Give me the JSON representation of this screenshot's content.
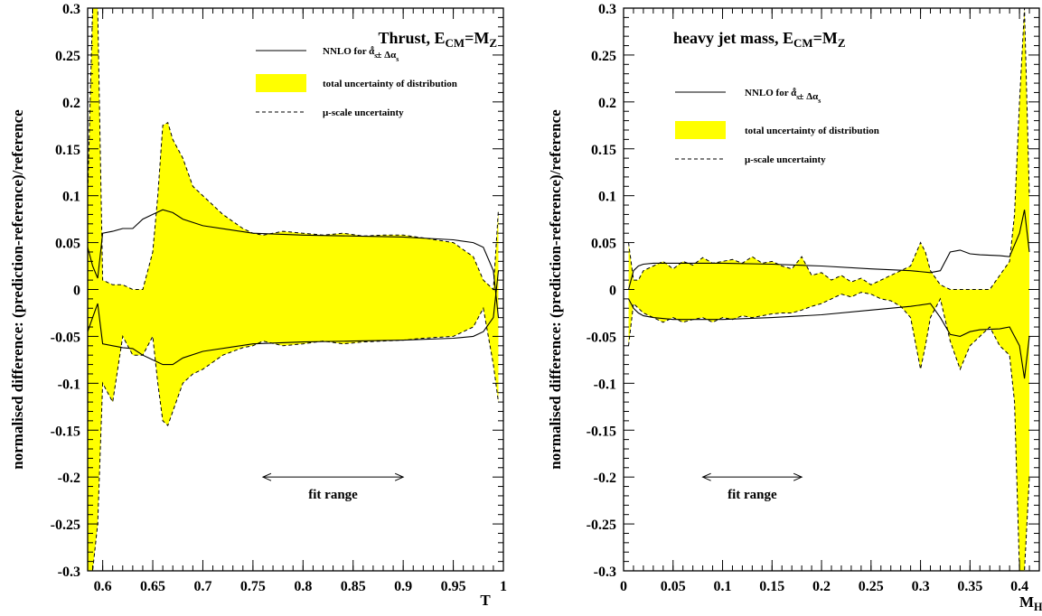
{
  "chart_data": [
    {
      "type": "area",
      "title": "Thrust, E_CM=M_Z",
      "title_parts": [
        "Thrust, E",
        "CM",
        "=M",
        "Z"
      ],
      "xlabel": "T",
      "ylabel": "normalised difference: (prediction-reference)/reference",
      "xlim": [
        0.585,
        1.0
      ],
      "ylim": [
        -0.3,
        0.3
      ],
      "xticks": [
        0.6,
        0.65,
        0.7,
        0.75,
        0.8,
        0.85,
        0.9,
        0.95,
        1
      ],
      "xtick_labels": [
        "0.6",
        "0.65",
        "0.7",
        "0.75",
        "0.8",
        "0.85",
        "0.9",
        "0.95",
        "1"
      ],
      "yticks": [
        0.3,
        0.25,
        0.2,
        0.15,
        0.1,
        0.05,
        0,
        -0.05,
        -0.1,
        -0.15,
        -0.2,
        -0.25,
        -0.3
      ],
      "ytick_labels": [
        "0.3",
        "0.25",
        "0.2",
        "0.15",
        "0.1",
        "0.05",
        "0",
        "-0.05",
        "-0.1",
        "-0.15",
        "-0.2",
        "-0.25",
        "-0.3"
      ],
      "legend": {
        "position": "top-right",
        "entries": [
          {
            "style": "solid",
            "label_parts": [
              "NNLO for α",
              "s",
              "0",
              " ± Δα",
              "s"
            ]
          },
          {
            "style": "fill",
            "label_parts": [
              "total uncertainty of distribution"
            ]
          },
          {
            "style": "dashed",
            "label_parts": [
              "μ-scale uncertainty"
            ]
          }
        ]
      },
      "fit_range": {
        "label": "fit range",
        "x": [
          0.76,
          0.9
        ],
        "y": -0.2
      },
      "band": {
        "color": "#ffff00",
        "x": [
          0.585,
          0.59,
          0.595,
          0.6,
          0.61,
          0.62,
          0.63,
          0.64,
          0.65,
          0.655,
          0.66,
          0.665,
          0.67,
          0.68,
          0.69,
          0.7,
          0.72,
          0.74,
          0.75,
          0.76,
          0.78,
          0.8,
          0.82,
          0.84,
          0.86,
          0.88,
          0.9,
          0.92,
          0.95,
          0.97,
          0.98,
          0.99,
          0.995
        ],
        "upper": [
          0.1,
          0.3,
          0.3,
          0.01,
          0.005,
          0.005,
          0.0,
          0.0,
          0.04,
          0.1,
          0.175,
          0.178,
          0.16,
          0.14,
          0.11,
          0.1,
          0.08,
          0.065,
          0.06,
          0.058,
          0.062,
          0.06,
          0.058,
          0.06,
          0.057,
          0.058,
          0.058,
          0.055,
          0.05,
          0.035,
          0.01,
          0.0,
          0.085
        ],
        "lower": [
          -0.3,
          -0.3,
          -0.25,
          -0.1,
          -0.12,
          -0.05,
          -0.07,
          -0.07,
          -0.05,
          -0.1,
          -0.14,
          -0.145,
          -0.13,
          -0.1,
          -0.09,
          -0.085,
          -0.07,
          -0.062,
          -0.06,
          -0.055,
          -0.06,
          -0.058,
          -0.055,
          -0.058,
          -0.056,
          -0.055,
          -0.054,
          -0.052,
          -0.05,
          -0.04,
          -0.02,
          -0.08,
          -0.12
        ]
      },
      "series": [
        {
          "style": "solid",
          "x": [
            0.585,
            0.59,
            0.595,
            0.6,
            0.61,
            0.62,
            0.63,
            0.64,
            0.65,
            0.66,
            0.67,
            0.68,
            0.7,
            0.75,
            0.8,
            0.85,
            0.9,
            0.95,
            0.97,
            0.98,
            0.99,
            0.995
          ],
          "values": [
            0.045,
            0.025,
            0.012,
            0.06,
            0.062,
            0.065,
            0.065,
            0.075,
            0.08,
            0.085,
            0.082,
            0.075,
            0.068,
            0.06,
            0.058,
            0.057,
            0.056,
            0.053,
            0.05,
            0.045,
            0.02,
            -0.03
          ]
        },
        {
          "style": "solid",
          "x": [
            0.585,
            0.59,
            0.595,
            0.6,
            0.61,
            0.62,
            0.63,
            0.64,
            0.65,
            0.66,
            0.67,
            0.68,
            0.7,
            0.75,
            0.8,
            0.85,
            0.9,
            0.95,
            0.97,
            0.98,
            0.99,
            0.995
          ],
          "values": [
            -0.045,
            -0.03,
            -0.015,
            -0.058,
            -0.06,
            -0.062,
            -0.063,
            -0.07,
            -0.075,
            -0.08,
            -0.08,
            -0.073,
            -0.066,
            -0.058,
            -0.056,
            -0.055,
            -0.054,
            -0.052,
            -0.05,
            -0.045,
            -0.03,
            0.02
          ]
        }
      ]
    },
    {
      "type": "area",
      "title": "heavy jet mass, E_CM=M_Z",
      "title_parts": [
        "heavy jet mass, E",
        "CM",
        "=M",
        "Z"
      ],
      "xlabel": "M_H",
      "xlabel_parts": [
        "M",
        "H"
      ],
      "ylabel": "normalised difference: (prediction-reference)/reference",
      "xlim": [
        0.0,
        0.42
      ],
      "ylim": [
        -0.3,
        0.3
      ],
      "xticks": [
        0,
        0.05,
        0.1,
        0.15,
        0.2,
        0.25,
        0.3,
        0.35,
        0.4
      ],
      "xtick_labels": [
        "0",
        "0.05",
        "0.1",
        "0.15",
        "0.2",
        "0.25",
        "0.3",
        "0.35",
        "0.4"
      ],
      "yticks": [
        0.3,
        0.25,
        0.2,
        0.15,
        0.1,
        0.05,
        0,
        -0.05,
        -0.1,
        -0.15,
        -0.2,
        -0.25,
        -0.3
      ],
      "ytick_labels": [
        "0.3",
        "0.25",
        "0.2",
        "0.15",
        "0.1",
        "0.05",
        "0",
        "-0.05",
        "-0.1",
        "-0.15",
        "-0.2",
        "-0.25",
        "-0.3"
      ],
      "legend": {
        "position": "top-right",
        "entries": [
          {
            "style": "solid",
            "label_parts": [
              "NNLO for α",
              "s",
              "0",
              " ± Δα",
              "s"
            ]
          },
          {
            "style": "fill",
            "label_parts": [
              "total uncertainty of distribution"
            ]
          },
          {
            "style": "dashed",
            "label_parts": [
              "μ-scale uncertainty"
            ]
          }
        ]
      },
      "fit_range": {
        "label": "fit range",
        "x": [
          0.08,
          0.18
        ],
        "y": -0.2
      },
      "band": {
        "color": "#ffff00",
        "x": [
          0.005,
          0.01,
          0.015,
          0.02,
          0.03,
          0.04,
          0.05,
          0.06,
          0.07,
          0.08,
          0.09,
          0.1,
          0.11,
          0.12,
          0.13,
          0.14,
          0.15,
          0.16,
          0.17,
          0.18,
          0.19,
          0.2,
          0.21,
          0.22,
          0.23,
          0.24,
          0.25,
          0.26,
          0.27,
          0.28,
          0.29,
          0.3,
          0.305,
          0.31,
          0.32,
          0.33,
          0.34,
          0.35,
          0.36,
          0.37,
          0.38,
          0.39,
          0.395,
          0.4,
          0.405,
          0.41
        ],
        "upper": [
          0.05,
          0.01,
          0.01,
          0.02,
          0.025,
          0.03,
          0.022,
          0.03,
          0.026,
          0.034,
          0.028,
          0.03,
          0.032,
          0.028,
          0.035,
          0.028,
          0.03,
          0.025,
          0.022,
          0.035,
          0.015,
          0.018,
          0.01,
          0.015,
          0.008,
          0.012,
          0.005,
          0.01,
          0.015,
          0.02,
          0.025,
          0.05,
          0.04,
          0.02,
          0.005,
          0.0,
          0.0,
          0.0,
          0.0,
          0.0,
          0.015,
          0.03,
          0.08,
          0.2,
          0.3,
          0.1
        ],
        "lower": [
          -0.06,
          -0.015,
          -0.02,
          -0.025,
          -0.03,
          -0.035,
          -0.03,
          -0.035,
          -0.032,
          -0.03,
          -0.035,
          -0.03,
          -0.032,
          -0.028,
          -0.03,
          -0.028,
          -0.026,
          -0.025,
          -0.025,
          -0.022,
          -0.018,
          -0.015,
          -0.01,
          -0.005,
          -0.008,
          -0.003,
          -0.005,
          -0.01,
          -0.012,
          -0.018,
          -0.03,
          -0.085,
          -0.06,
          -0.03,
          -0.01,
          -0.055,
          -0.085,
          -0.06,
          -0.05,
          -0.04,
          -0.06,
          -0.07,
          -0.12,
          -0.3,
          -0.3,
          -0.2
        ]
      },
      "series": [
        {
          "style": "solid",
          "x": [
            0.005,
            0.01,
            0.015,
            0.02,
            0.03,
            0.05,
            0.1,
            0.15,
            0.2,
            0.25,
            0.29,
            0.31,
            0.32,
            0.33,
            0.34,
            0.35,
            0.36,
            0.38,
            0.39,
            0.4,
            0.405,
            0.41
          ],
          "values": [
            0.0,
            0.02,
            0.025,
            0.027,
            0.028,
            0.028,
            0.028,
            0.027,
            0.025,
            0.022,
            0.02,
            0.018,
            0.02,
            0.04,
            0.042,
            0.038,
            0.037,
            0.036,
            0.035,
            0.06,
            0.085,
            0.04
          ]
        },
        {
          "style": "solid",
          "x": [
            0.005,
            0.01,
            0.015,
            0.02,
            0.03,
            0.05,
            0.1,
            0.15,
            0.2,
            0.25,
            0.29,
            0.31,
            0.32,
            0.33,
            0.34,
            0.35,
            0.36,
            0.38,
            0.39,
            0.4,
            0.405,
            0.41
          ],
          "values": [
            -0.01,
            -0.02,
            -0.025,
            -0.028,
            -0.03,
            -0.032,
            -0.032,
            -0.03,
            -0.027,
            -0.022,
            -0.018,
            -0.015,
            -0.03,
            -0.048,
            -0.05,
            -0.045,
            -0.043,
            -0.042,
            -0.04,
            -0.06,
            -0.095,
            -0.05
          ]
        }
      ]
    }
  ]
}
